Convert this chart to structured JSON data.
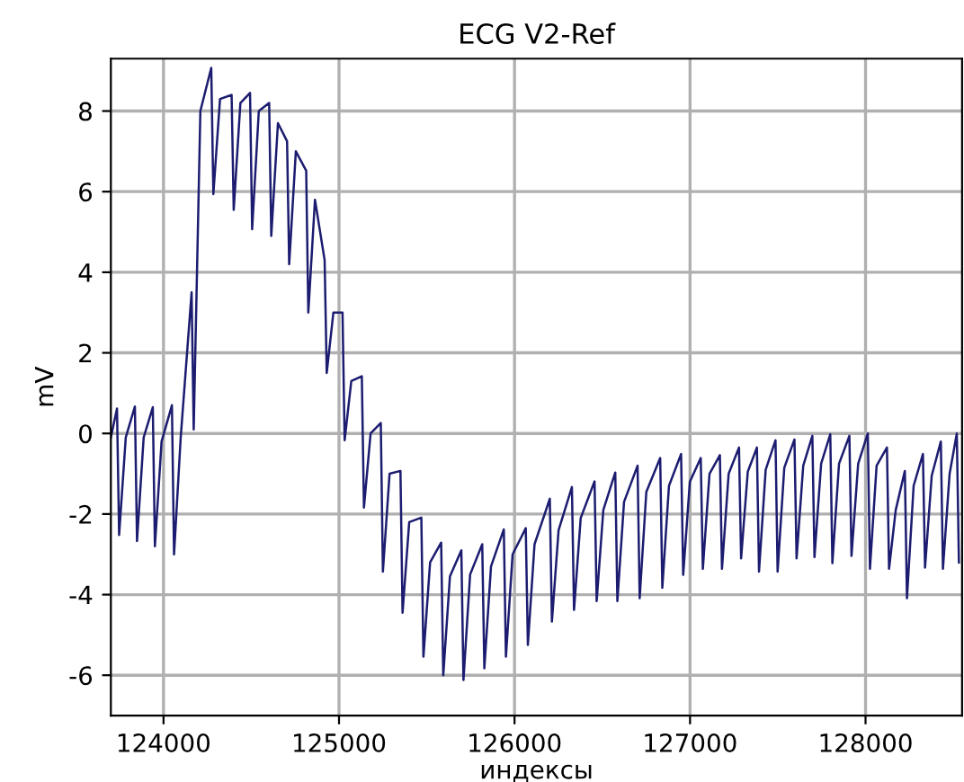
{
  "chart_data": {
    "type": "line",
    "title": "ECG V2-Ref",
    "xlabel": "индексы",
    "ylabel": "mV",
    "xlim": [
      123700,
      128550
    ],
    "ylim": [
      -7.0,
      9.3
    ],
    "xticks": [
      124000,
      125000,
      126000,
      127000,
      128000
    ],
    "yticks": [
      -6,
      -4,
      -2,
      0,
      2,
      4,
      6,
      8
    ],
    "grid": true,
    "marker": "none",
    "line_style": "solid",
    "series": [
      {
        "color": "#1c1c70",
        "x": [
          123700,
          123735,
          123747,
          123785,
          123837,
          123849,
          123887,
          123939,
          123951,
          123989,
          124048,
          124060,
          124098,
          124160,
          124172,
          124210,
          124272,
          124284,
          124322,
          124388,
          124400,
          124438,
          124493,
          124505,
          124543,
          124602,
          124614,
          124652,
          124704,
          124716,
          124754,
          124813,
          124825,
          124863,
          124918,
          124930,
          124968,
          125020,
          125032,
          125070,
          125130,
          125142,
          125180,
          125238,
          125250,
          125288,
          125350,
          125362,
          125400,
          125469,
          125481,
          125519,
          125582,
          125594,
          125632,
          125697,
          125709,
          125747,
          125816,
          125828,
          125866,
          125939,
          125951,
          125989,
          126064,
          126076,
          126114,
          126201,
          126213,
          126251,
          126327,
          126339,
          126377,
          126456,
          126468,
          126506,
          126574,
          126586,
          126624,
          126701,
          126713,
          126751,
          126830,
          126842,
          126880,
          126949,
          126961,
          126999,
          127061,
          127073,
          127111,
          127170,
          127182,
          127220,
          127279,
          127291,
          127329,
          127381,
          127393,
          127431,
          127487,
          127499,
          127537,
          127595,
          127607,
          127645,
          127697,
          127709,
          127747,
          127799,
          127811,
          127849,
          127908,
          127920,
          127958,
          128013,
          128025,
          128063,
          128122,
          128134,
          128172,
          128224,
          128236,
          128274,
          128327,
          128339,
          128377,
          128429,
          128441,
          128479,
          128520,
          128532
        ],
        "values": [
          -0.1,
          0.62,
          -2.52,
          -0.1,
          0.67,
          -2.67,
          -0.1,
          0.65,
          -2.8,
          -0.2,
          0.7,
          -3.0,
          -0.1,
          3.5,
          0.1,
          8.0,
          9.07,
          5.94,
          8.3,
          8.4,
          5.55,
          8.2,
          8.45,
          5.07,
          8.0,
          8.2,
          4.9,
          7.7,
          7.25,
          4.2,
          7.0,
          6.52,
          3.0,
          5.8,
          4.3,
          1.5,
          3.0,
          3.0,
          -0.17,
          1.3,
          1.42,
          -1.84,
          0.0,
          0.26,
          -3.43,
          -1.0,
          -0.93,
          -4.45,
          -2.2,
          -2.09,
          -5.54,
          -3.2,
          -2.71,
          -6.0,
          -3.55,
          -2.9,
          -6.12,
          -3.5,
          -2.75,
          -5.83,
          -3.3,
          -2.38,
          -5.54,
          -3.0,
          -2.35,
          -5.25,
          -2.75,
          -1.62,
          -4.67,
          -2.4,
          -1.33,
          -4.38,
          -2.1,
          -1.19,
          -4.16,
          -1.9,
          -0.97,
          -4.16,
          -1.7,
          -0.8,
          -4.09,
          -1.45,
          -0.61,
          -3.83,
          -1.3,
          -0.51,
          -3.51,
          -1.2,
          -0.61,
          -3.36,
          -1.0,
          -0.54,
          -3.36,
          -1.0,
          -0.35,
          -3.1,
          -0.95,
          -0.35,
          -3.43,
          -0.9,
          -0.17,
          -3.43,
          -0.85,
          -0.15,
          -3.1,
          -0.8,
          -0.06,
          -3.07,
          -0.75,
          -0.02,
          -3.22,
          -0.75,
          -0.06,
          -3.04,
          -0.75,
          0.0,
          -3.36,
          -0.8,
          -0.35,
          -3.36,
          -1.9,
          -0.93,
          -4.09,
          -1.3,
          -0.51,
          -3.33,
          -1.05,
          -0.2,
          -3.36,
          -1.0,
          0.0,
          -3.2
        ]
      }
    ]
  }
}
